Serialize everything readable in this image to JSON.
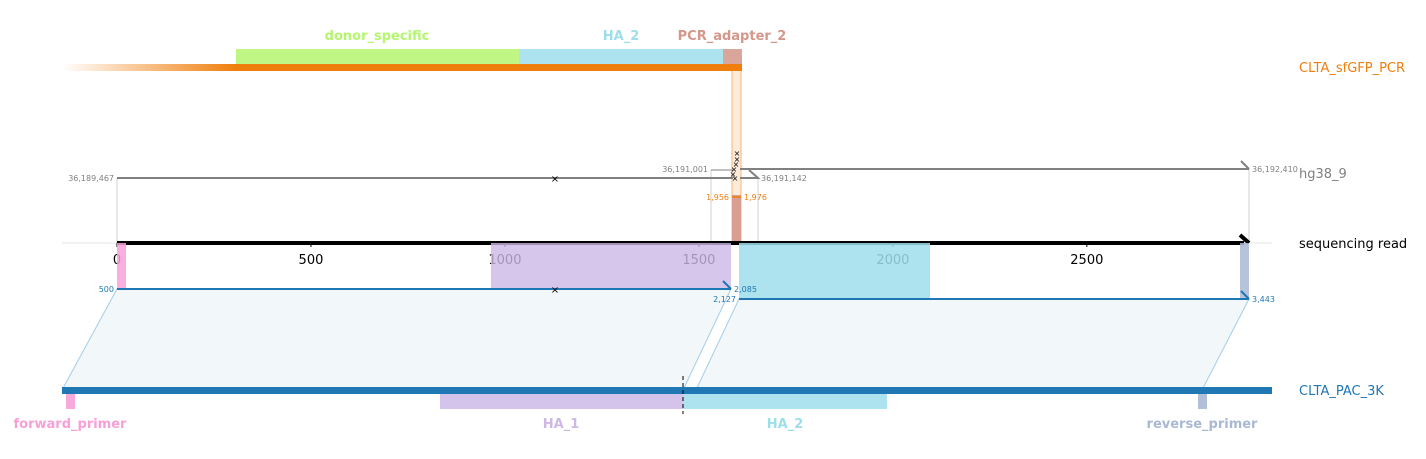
{
  "colors": {
    "pcr": "#f07e0c",
    "hg38": "#808080",
    "read": "#000000",
    "pac": "#1f77b4",
    "donor_specific": "#b5f56f",
    "ha1": "#cdb8e6",
    "ha2": "#9ddeeb",
    "pcr_adapter_2": "#d4978a",
    "forward_primer": "#f7a0d8",
    "reverse_primer": "#aab8d4",
    "mismatch": "#000000"
  },
  "tracks": {
    "pcr": "CLTA_sfGFP_PCR",
    "hg38": "hg38_9",
    "read": "sequencing read",
    "pac": "CLTA_PAC_3K"
  },
  "top_features": {
    "donor_specific": "donor_specific",
    "ha2": "HA_2",
    "pcr_adapter_2": "PCR_adapter_2"
  },
  "bottom_features": {
    "forward_primer": "forward_primer",
    "ha1": "HA_1",
    "ha2": "HA_2",
    "reverse_primer": "reverse_primer"
  },
  "read_axis": {
    "ticks": [
      "0",
      "500",
      "1000",
      "1500",
      "2000",
      "2500"
    ],
    "tick_values": [
      0,
      500,
      1000,
      1500,
      2000,
      2500
    ],
    "length": 2918
  },
  "hg38_alignments": {
    "first_start": "36,189,467",
    "first_end": "36,191,001",
    "second_start": "36,191,142",
    "second_end": "36,192,410"
  },
  "pcr_alignment": {
    "read_start": "1,956",
    "read_end": "1,976"
  },
  "pac_alignments": {
    "first_start": "500",
    "first_end": "2,085",
    "second_start": "2,127",
    "second_end": "3,443"
  }
}
